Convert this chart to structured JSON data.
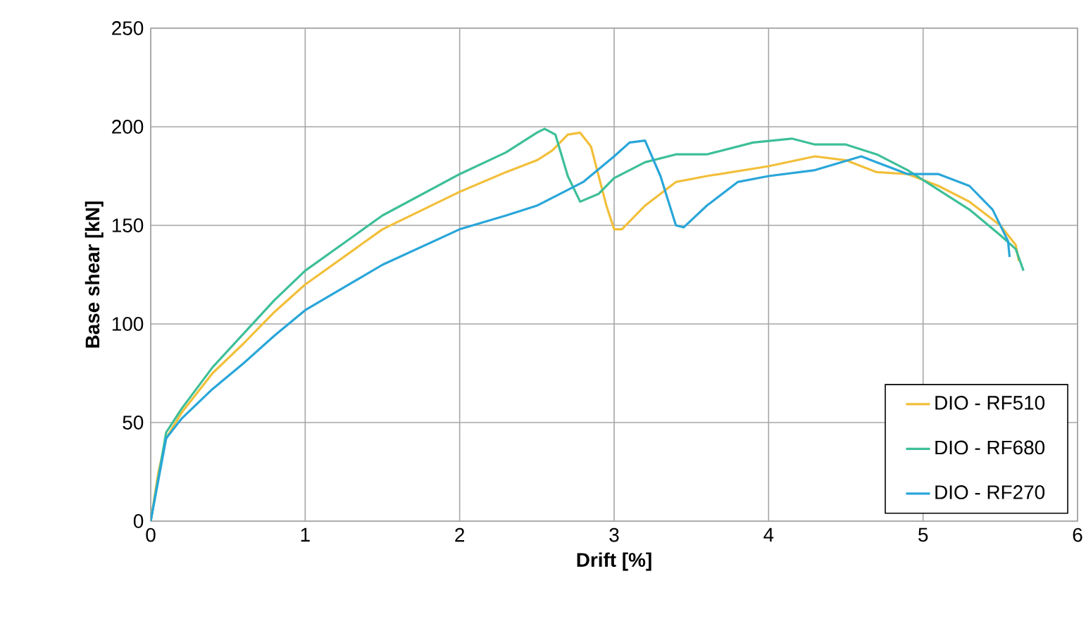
{
  "chart_data": {
    "type": "line",
    "xlabel": "Drift [%]",
    "ylabel": "Base shear [kN]",
    "xlim": [
      0,
      6
    ],
    "xticks": [
      0,
      1,
      2,
      3,
      4,
      5,
      6
    ],
    "ylim": [
      0,
      250
    ],
    "yticks": [
      0,
      50,
      100,
      150,
      200,
      250
    ],
    "grid": true,
    "legend": "bottom right",
    "marker": "none",
    "line_style": "solid",
    "series": [
      {
        "name": "DIO - RF510",
        "color": "#f2bf3a",
        "x": [
          0,
          0.05,
          0.1,
          0.2,
          0.4,
          0.6,
          0.8,
          1,
          1.5,
          2,
          2.3,
          2.5,
          2.6,
          2.7,
          2.78,
          2.85,
          2.95,
          3,
          3.05,
          3.2,
          3.4,
          3.6,
          4,
          4.3,
          4.5,
          4.7,
          4.9,
          5.1,
          5.3,
          5.5,
          5.6,
          5.62
        ],
        "values": [
          0,
          25,
          42,
          55,
          75,
          90,
          106,
          120,
          148,
          167,
          177,
          183,
          188,
          196,
          197,
          190,
          160,
          148,
          148,
          160,
          172,
          175,
          180,
          185,
          183,
          177,
          176,
          170,
          162,
          150,
          140,
          132
        ]
      },
      {
        "name": "DIO - RF680",
        "color": "#3dbf98",
        "x": [
          0,
          0.1,
          0.2,
          0.4,
          0.6,
          0.8,
          1,
          1.5,
          2,
          2.3,
          2.5,
          2.55,
          2.62,
          2.7,
          2.78,
          2.9,
          3,
          3.2,
          3.4,
          3.6,
          3.9,
          4.15,
          4.3,
          4.5,
          4.7,
          4.9,
          5.1,
          5.3,
          5.5,
          5.6,
          5.65
        ],
        "values": [
          0,
          45,
          57,
          78,
          95,
          112,
          127,
          155,
          176,
          187,
          197,
          199,
          196,
          175,
          162,
          166,
          174,
          182,
          186,
          186,
          192,
          194,
          191,
          191,
          186,
          178,
          168,
          158,
          145,
          138,
          127
        ]
      },
      {
        "name": "DIO - RF270",
        "color": "#29a6d9",
        "x": [
          0,
          0.1,
          0.2,
          0.4,
          0.6,
          0.8,
          1,
          1.5,
          2,
          2.3,
          2.5,
          2.8,
          3,
          3.1,
          3.2,
          3.3,
          3.4,
          3.45,
          3.6,
          3.8,
          4,
          4.3,
          4.6,
          4.7,
          4.9,
          5.1,
          5.3,
          5.45,
          5.55,
          5.56
        ],
        "values": [
          0,
          42,
          52,
          67,
          80,
          94,
          107,
          130,
          148,
          155,
          160,
          172,
          185,
          192,
          193,
          175,
          150,
          149,
          160,
          172,
          175,
          178,
          185,
          182,
          176,
          176,
          170,
          158,
          142,
          134
        ]
      }
    ]
  }
}
